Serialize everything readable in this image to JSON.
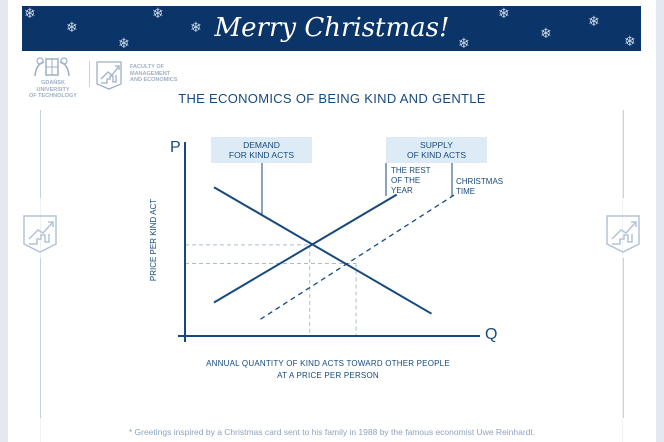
{
  "banner": {
    "title": "Merry Christmas!",
    "color": "#0b3468",
    "snowflake_glyph": "❄"
  },
  "logos": {
    "university": {
      "line1": "GDAŃSK UNIVERSITY",
      "line2": "OF TECHNOLOGY",
      "icon": "crest-icon"
    },
    "faculty": {
      "line1": "FACULTY OF",
      "line2": "MANAGEMENT",
      "line3": "AND ECONOMICS",
      "icon": "growth-chart-icon"
    }
  },
  "title": "THE ECONOMICS OF BEING KIND AND GENTLE",
  "chart_data": {
    "type": "line",
    "title": "THE ECONOMICS OF BEING KIND AND GENTLE",
    "xlabel": "ANNUAL QUANTITY OF KIND ACTS TOWARD OTHER PEOPLE AT A PRICE PER PERSON",
    "ylabel": "PRICE PER KIND ACT",
    "x_axis_letter": "Q",
    "y_axis_letter": "P",
    "xlim": [
      0,
      10
    ],
    "ylim": [
      0,
      10
    ],
    "grid": false,
    "series": [
      {
        "name": "Demand for kind acts",
        "style": "solid",
        "points": [
          [
            1,
            8
          ],
          [
            8.5,
            1.2
          ]
        ]
      },
      {
        "name": "Supply of kind acts – the rest of the year",
        "style": "solid",
        "points": [
          [
            1,
            1.8
          ],
          [
            7.3,
            7.6
          ]
        ]
      },
      {
        "name": "Supply of kind acts – Christmas time",
        "style": "dashed",
        "points": [
          [
            2.6,
            0.9
          ],
          [
            9.3,
            7.6
          ]
        ]
      }
    ],
    "equilibria": [
      {
        "name": "rest of the year",
        "q": 4.3,
        "p": 4.9
      },
      {
        "name": "Christmas time",
        "q": 5.9,
        "p": 3.9
      }
    ],
    "annotations": {
      "demand": {
        "line1": "DEMAND",
        "line2": "FOR KIND ACTS"
      },
      "supply": {
        "line1": "SUPPLY",
        "line2": "OF KIND ACTS"
      },
      "rest_of_year": {
        "line1": "THE REST",
        "line2": "OF THE",
        "line3": "YEAR"
      },
      "christmas": {
        "line1": "CHRISTMAS",
        "line2": "TIME"
      }
    },
    "colors": {
      "line": "#174a7c",
      "guide": "#a9bcd2",
      "label_box": "#dcebf6"
    }
  },
  "xlabel_lines": [
    "ANNUAL QUANTITY OF KIND ACTS TOWARD OTHER PEOPLE",
    "AT A PRICE PER PERSON"
  ],
  "footer": "* Greetings inspired by a Christmas card sent to his family in 1988 by the famous economist Uwe Reinhardt."
}
